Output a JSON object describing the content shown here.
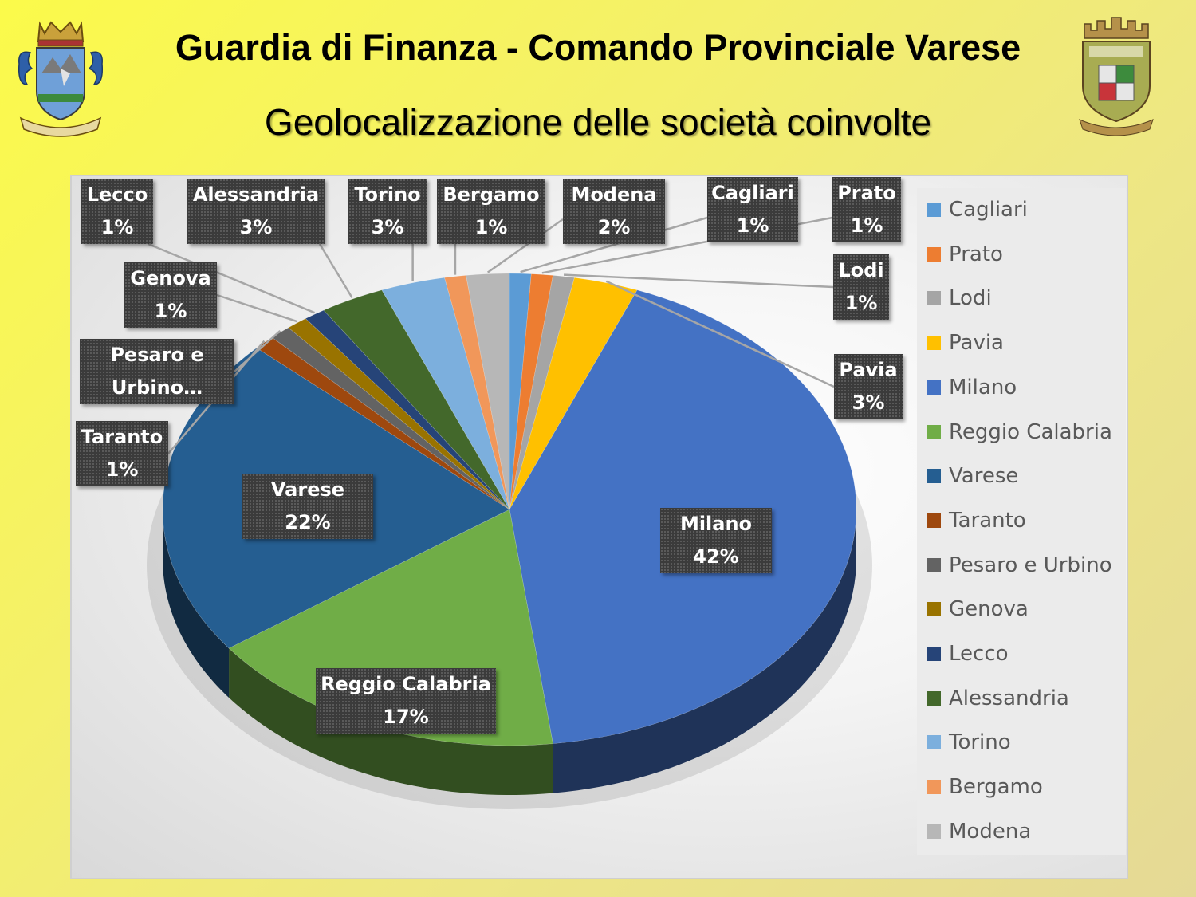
{
  "header": {
    "title": "Guardia di Finanza - Comando Provinciale Varese",
    "subtitle": "Geolocalizzazione delle società coinvolte"
  },
  "chart_data": {
    "type": "pie",
    "title": "",
    "style": "3d-exploded",
    "legend_position": "right",
    "categories": [
      "Cagliari",
      "Prato",
      "Lodi",
      "Pavia",
      "Milano",
      "Reggio Calabria",
      "Varese",
      "Taranto",
      "Pesaro e Urbino",
      "Genova",
      "Lecco",
      "Alessandria",
      "Torino",
      "Bergamo",
      "Modena"
    ],
    "values": [
      1,
      1,
      1,
      3,
      42,
      17,
      22,
      1,
      1,
      1,
      1,
      3,
      3,
      1,
      2
    ],
    "data_labels": [
      {
        "category": "Cagliari",
        "text": "Cagliari",
        "value_text": "1%"
      },
      {
        "category": "Prato",
        "text": "Prato",
        "value_text": "1%"
      },
      {
        "category": "Lodi",
        "text": "Lodi",
        "value_text": "1%"
      },
      {
        "category": "Pavia",
        "text": "Pavia",
        "value_text": "3%"
      },
      {
        "category": "Milano",
        "text": "Milano",
        "value_text": "42%"
      },
      {
        "category": "Reggio Calabria",
        "text": "Reggio Calabria",
        "value_text": "17%"
      },
      {
        "category": "Varese",
        "text": "Varese",
        "value_text": "22%"
      },
      {
        "category": "Taranto",
        "text": "Taranto",
        "value_text": "1%"
      },
      {
        "category": "Pesaro e Urbino",
        "text": "Pesaro e Urbino…",
        "value_text": ""
      },
      {
        "category": "Genova",
        "text": "Genova",
        "value_text": "1%"
      },
      {
        "category": "Lecco",
        "text": "Lecco",
        "value_text": "1%"
      },
      {
        "category": "Alessandria",
        "text": "Alessandria",
        "value_text": "3%"
      },
      {
        "category": "Torino",
        "text": "Torino",
        "value_text": "3%"
      },
      {
        "category": "Bergamo",
        "text": "Bergamo",
        "value_text": "1%"
      },
      {
        "category": "Modena",
        "text": "Modena",
        "value_text": "2%"
      }
    ],
    "colors": [
      "#5b9bd5",
      "#ed7d31",
      "#a5a5a5",
      "#ffc000",
      "#4472c4",
      "#70ad47",
      "#255e91",
      "#9e480e",
      "#636363",
      "#997300",
      "#264478",
      "#43682b",
      "#7cafdd",
      "#f1975a",
      "#b7b7b7"
    ]
  },
  "icons": {
    "left_crest": "guardia-di-finanza-crest-icon",
    "right_crest": "comando-provinciale-varese-crest-icon"
  }
}
